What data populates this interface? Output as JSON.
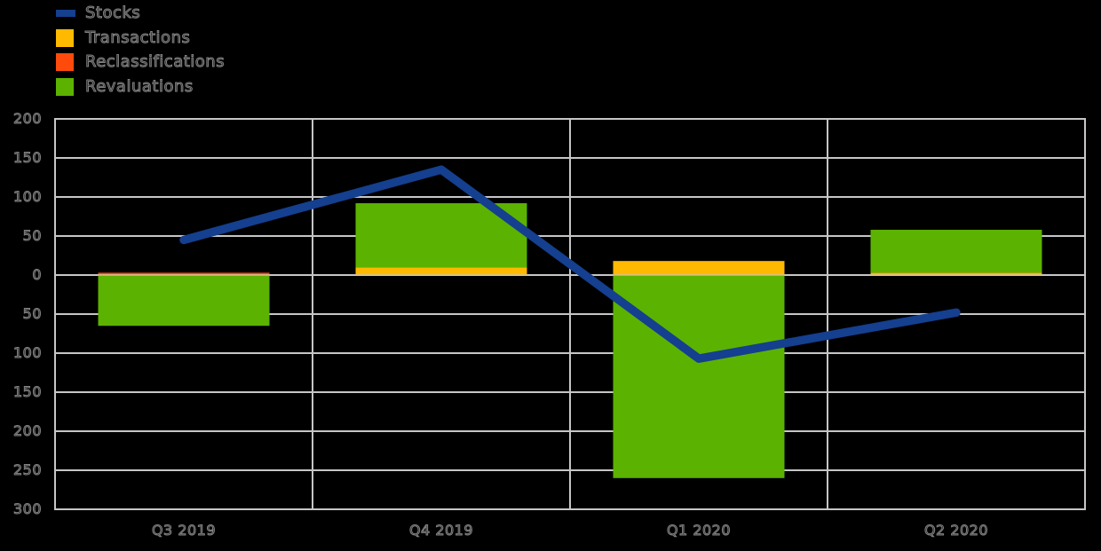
{
  "legend": {
    "items": [
      {
        "label": "Stocks",
        "color": "#153f8f",
        "swatch": "line"
      },
      {
        "label": "Transactions",
        "color": "#ffb900",
        "swatch": "square"
      },
      {
        "label": "Reclassifications",
        "color": "#fe4b0c",
        "swatch": "square"
      },
      {
        "label": "Revaluations",
        "color": "#5cb200",
        "swatch": "square"
      }
    ]
  },
  "colors": {
    "background": "#000000",
    "gridline": "#c6c6c6",
    "stocks": "#153f8f",
    "transactions": "#ffb900",
    "reclassifications": "#fe4b0c",
    "revaluations": "#5cb200"
  },
  "chart_data": {
    "type": "combo: stacked bar + line",
    "title": "",
    "xlabel": "",
    "ylabel": "",
    "categories": [
      "Q3 2019",
      "Q4 2019",
      "Q1 2020",
      "Q2 2020"
    ],
    "series": [
      {
        "name": "Stocks",
        "type": "line",
        "values": [
          45,
          135,
          -107,
          -48
        ]
      },
      {
        "name": "Transactions",
        "type": "bar",
        "values": [
          1,
          10,
          18,
          3
        ]
      },
      {
        "name": "Reclassifications",
        "type": "bar",
        "values": [
          2,
          0,
          0,
          0
        ]
      },
      {
        "name": "Revaluations",
        "type": "bar",
        "values": [
          -65,
          82,
          -260,
          55
        ]
      }
    ],
    "ylim": [
      -300,
      200
    ],
    "y_tick_step": 50,
    "y_ticks": [
      {
        "value": 200,
        "label": "200"
      },
      {
        "value": 150,
        "label": "150"
      },
      {
        "value": 100,
        "label": "100"
      },
      {
        "value": 50,
        "label": "50"
      },
      {
        "value": 0,
        "label": "0"
      },
      {
        "value": -50,
        "label": "50"
      },
      {
        "value": -100,
        "label": "100"
      },
      {
        "value": -150,
        "label": "150"
      },
      {
        "value": -200,
        "label": "200"
      },
      {
        "value": -250,
        "label": "250"
      },
      {
        "value": -300,
        "label": "300"
      }
    ],
    "grid": true,
    "legend_position": "top-left"
  }
}
